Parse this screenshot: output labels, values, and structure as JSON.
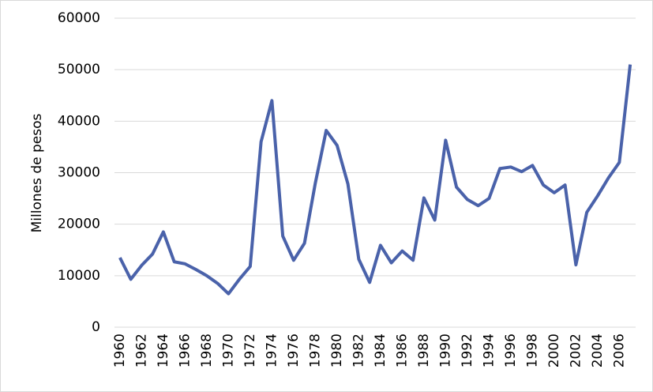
{
  "chart_data": {
    "type": "line",
    "y_label": "Millones de pesos",
    "categories": [
      "1960",
      null,
      "1962",
      null,
      "1964",
      null,
      "1966",
      null,
      "1968",
      null,
      "1970",
      null,
      "1972",
      null,
      "1974",
      null,
      "1976",
      null,
      "1978",
      null,
      "1980",
      null,
      "1982",
      null,
      "1984",
      null,
      "1986",
      null,
      "1988",
      null,
      "1990",
      null,
      "1992",
      null,
      "1994",
      null,
      "1996",
      null,
      "1998",
      null,
      "2000",
      null,
      "2002",
      null,
      "2004",
      null,
      "2006",
      null
    ],
    "series": [
      {
        "color": "#4a62aa",
        "values": [
          13500,
          9300,
          12000,
          14200,
          18500,
          12700,
          12300,
          11200,
          10000,
          8500,
          6500,
          9300,
          11800,
          36000,
          44000,
          17700,
          13000,
          16300,
          28000,
          38200,
          35300,
          27800,
          13200,
          8700,
          15900,
          12500,
          14800,
          13000,
          25100,
          20800,
          36300,
          27200,
          24800,
          23600,
          25000,
          30800,
          31100,
          30200,
          31400,
          27600,
          26100,
          27600,
          12100,
          22300,
          25500,
          29000,
          32000,
          51000
        ]
      }
    ],
    "ylim": [
      0,
      60000
    ],
    "yticks": [
      0,
      10000,
      20000,
      30000,
      40000,
      50000,
      60000
    ],
    "grid": true
  }
}
